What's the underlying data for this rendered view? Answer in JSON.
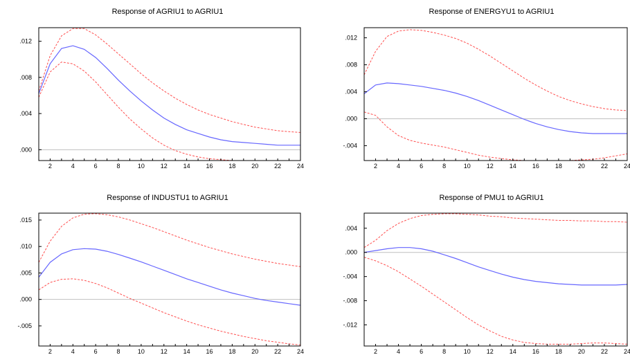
{
  "colors": {
    "response": "#6666ff",
    "band": "#ff4d4d",
    "zero_line": "#bfbfbf",
    "frame": "#000000"
  },
  "chart_data": [
    {
      "type": "line",
      "title": "Response of AGRIU1 to AGRIU1",
      "xlim": [
        1,
        24
      ],
      "x_ticks": [
        "2",
        "4",
        "6",
        "8",
        "10",
        "12",
        "14",
        "16",
        "18",
        "20",
        "22",
        "24"
      ],
      "ylim": [
        -0.0012,
        0.0135
      ],
      "y_ticks": [
        {
          "v": 0.0,
          "label": ".000"
        },
        {
          "v": 0.004,
          "label": ".004"
        },
        {
          "v": 0.008,
          "label": ".008"
        },
        {
          "v": 0.012,
          "label": ".012"
        }
      ],
      "x": [
        1,
        2,
        3,
        4,
        5,
        6,
        7,
        8,
        9,
        10,
        11,
        12,
        13,
        14,
        15,
        16,
        17,
        18,
        19,
        20,
        21,
        22,
        23,
        24
      ],
      "series": [
        {
          "role": "response",
          "values": [
            0.0062,
            0.0095,
            0.0112,
            0.0115,
            0.0111,
            0.0102,
            0.009,
            0.0077,
            0.0065,
            0.0054,
            0.0044,
            0.0035,
            0.0028,
            0.0022,
            0.0018,
            0.0014,
            0.0011,
            0.0009,
            0.0008,
            0.0007,
            0.0006,
            0.0005,
            0.0005,
            0.0005
          ]
        },
        {
          "role": "upper",
          "values": [
            0.0065,
            0.0104,
            0.0126,
            0.0134,
            0.0134,
            0.0127,
            0.0117,
            0.0106,
            0.0095,
            0.0084,
            0.0074,
            0.0065,
            0.0057,
            0.005,
            0.0044,
            0.0039,
            0.0035,
            0.0031,
            0.0028,
            0.0025,
            0.0023,
            0.0021,
            0.002,
            0.0019
          ]
        },
        {
          "role": "lower",
          "values": [
            0.0058,
            0.0086,
            0.0097,
            0.0095,
            0.0087,
            0.0075,
            0.0061,
            0.0047,
            0.0034,
            0.0023,
            0.0013,
            0.0005,
            -0.0001,
            -0.0005,
            -0.0008,
            -0.001,
            -0.0011,
            -0.0012,
            -0.0012,
            -0.0012,
            -0.0012,
            -0.0012,
            -0.0012,
            -0.0012
          ]
        }
      ]
    },
    {
      "type": "line",
      "title": "Response of ENERGYU1 to AGRIU1",
      "xlim": [
        1,
        24
      ],
      "x_ticks": [
        "2",
        "4",
        "6",
        "8",
        "10",
        "12",
        "14",
        "16",
        "18",
        "20",
        "22",
        "24"
      ],
      "ylim": [
        -0.0062,
        0.0135
      ],
      "y_ticks": [
        {
          "v": -0.004,
          "label": "-.004"
        },
        {
          "v": 0.0,
          "label": ".000"
        },
        {
          "v": 0.004,
          "label": ".004"
        },
        {
          "v": 0.008,
          "label": ".008"
        },
        {
          "v": 0.012,
          "label": ".012"
        }
      ],
      "x": [
        1,
        2,
        3,
        4,
        5,
        6,
        7,
        8,
        9,
        10,
        11,
        12,
        13,
        14,
        15,
        16,
        17,
        18,
        19,
        20,
        21,
        22,
        23,
        24
      ],
      "series": [
        {
          "role": "response",
          "values": [
            0.0037,
            0.005,
            0.0053,
            0.0052,
            0.005,
            0.0048,
            0.0045,
            0.0042,
            0.0038,
            0.0033,
            0.0027,
            0.002,
            0.0013,
            0.0006,
            -0.0001,
            -0.0007,
            -0.0012,
            -0.0016,
            -0.0019,
            -0.0021,
            -0.0022,
            -0.0022,
            -0.0022,
            -0.0022
          ]
        },
        {
          "role": "upper",
          "values": [
            0.0065,
            0.01,
            0.0122,
            0.013,
            0.0132,
            0.0131,
            0.0128,
            0.0124,
            0.0119,
            0.0112,
            0.0103,
            0.0093,
            0.0082,
            0.0071,
            0.006,
            0.005,
            0.0041,
            0.0033,
            0.0027,
            0.0022,
            0.0018,
            0.0015,
            0.0013,
            0.0012
          ]
        },
        {
          "role": "lower",
          "values": [
            0.001,
            0.0005,
            -0.0012,
            -0.0025,
            -0.0032,
            -0.0036,
            -0.0039,
            -0.0042,
            -0.0046,
            -0.005,
            -0.0054,
            -0.0057,
            -0.0059,
            -0.0061,
            -0.0062,
            -0.0062,
            -0.0062,
            -0.0062,
            -0.0062,
            -0.0061,
            -0.006,
            -0.0058,
            -0.0055,
            -0.0052
          ]
        }
      ]
    },
    {
      "type": "line",
      "title": "Response of INDUSTU1 to AGRIU1",
      "xlim": [
        1,
        24
      ],
      "x_ticks": [
        "2",
        "4",
        "6",
        "8",
        "10",
        "12",
        "14",
        "16",
        "18",
        "20",
        "22",
        "24"
      ],
      "ylim": [
        -0.0088,
        0.0163
      ],
      "y_ticks": [
        {
          "v": -0.005,
          "label": "-.005"
        },
        {
          "v": 0.0,
          "label": ".000"
        },
        {
          "v": 0.005,
          "label": ".005"
        },
        {
          "v": 0.01,
          "label": ".010"
        },
        {
          "v": 0.015,
          "label": ".015"
        }
      ],
      "x": [
        1,
        2,
        3,
        4,
        5,
        6,
        7,
        8,
        9,
        10,
        11,
        12,
        13,
        14,
        15,
        16,
        17,
        18,
        19,
        20,
        21,
        22,
        23,
        24
      ],
      "series": [
        {
          "role": "response",
          "values": [
            0.0042,
            0.007,
            0.0086,
            0.0094,
            0.0096,
            0.0095,
            0.0091,
            0.0085,
            0.0078,
            0.0071,
            0.0063,
            0.0055,
            0.0047,
            0.0039,
            0.0032,
            0.0025,
            0.0018,
            0.0012,
            0.0007,
            0.0002,
            -0.0002,
            -0.0005,
            -0.0008,
            -0.0011
          ]
        },
        {
          "role": "upper",
          "values": [
            0.007,
            0.011,
            0.0138,
            0.0154,
            0.0161,
            0.0162,
            0.016,
            0.0156,
            0.015,
            0.0143,
            0.0136,
            0.0128,
            0.012,
            0.0112,
            0.0105,
            0.0098,
            0.0092,
            0.0086,
            0.0081,
            0.0076,
            0.0072,
            0.0068,
            0.0065,
            0.0062
          ]
        },
        {
          "role": "lower",
          "values": [
            0.0018,
            0.0032,
            0.0038,
            0.0039,
            0.0036,
            0.003,
            0.0022,
            0.0012,
            0.0002,
            -0.0007,
            -0.0016,
            -0.0025,
            -0.0033,
            -0.0041,
            -0.0048,
            -0.0054,
            -0.006,
            -0.0065,
            -0.007,
            -0.0074,
            -0.0078,
            -0.0081,
            -0.0084,
            -0.0086
          ]
        }
      ]
    },
    {
      "type": "line",
      "title": "Response of PMU1 to AGRIU1",
      "xlim": [
        1,
        24
      ],
      "x_ticks": [
        "2",
        "4",
        "6",
        "8",
        "10",
        "12",
        "14",
        "16",
        "18",
        "20",
        "22",
        "24"
      ],
      "ylim": [
        -0.0155,
        0.0065
      ],
      "y_ticks": [
        {
          "v": -0.012,
          "label": "-.012"
        },
        {
          "v": -0.008,
          "label": "-.008"
        },
        {
          "v": -0.004,
          "label": "-.004"
        },
        {
          "v": 0.0,
          "label": ".000"
        },
        {
          "v": 0.004,
          "label": ".004"
        }
      ],
      "x": [
        1,
        2,
        3,
        4,
        5,
        6,
        7,
        8,
        9,
        10,
        11,
        12,
        13,
        14,
        15,
        16,
        17,
        18,
        19,
        20,
        21,
        22,
        23,
        24
      ],
      "series": [
        {
          "role": "response",
          "values": [
            0.0,
            0.0003,
            0.0006,
            0.0008,
            0.0008,
            0.0006,
            0.0002,
            -0.0004,
            -0.001,
            -0.0017,
            -0.0024,
            -0.003,
            -0.0036,
            -0.0041,
            -0.0045,
            -0.0048,
            -0.005,
            -0.0052,
            -0.0053,
            -0.0054,
            -0.0054,
            -0.0054,
            -0.0054,
            -0.0053
          ]
        },
        {
          "role": "upper",
          "values": [
            0.0008,
            0.002,
            0.0036,
            0.0048,
            0.0056,
            0.0061,
            0.0063,
            0.0064,
            0.0064,
            0.0063,
            0.0062,
            0.006,
            0.0059,
            0.0057,
            0.0056,
            0.0055,
            0.0054,
            0.0053,
            0.0053,
            0.0052,
            0.0052,
            0.0051,
            0.0051,
            0.005
          ]
        },
        {
          "role": "lower",
          "values": [
            -0.0008,
            -0.0014,
            -0.0022,
            -0.0032,
            -0.0044,
            -0.0056,
            -0.0069,
            -0.0082,
            -0.0095,
            -0.0108,
            -0.012,
            -0.013,
            -0.0139,
            -0.0145,
            -0.0149,
            -0.0151,
            -0.0152,
            -0.0152,
            -0.0152,
            -0.0151,
            -0.015,
            -0.015,
            -0.0151,
            -0.0152
          ]
        }
      ]
    }
  ]
}
